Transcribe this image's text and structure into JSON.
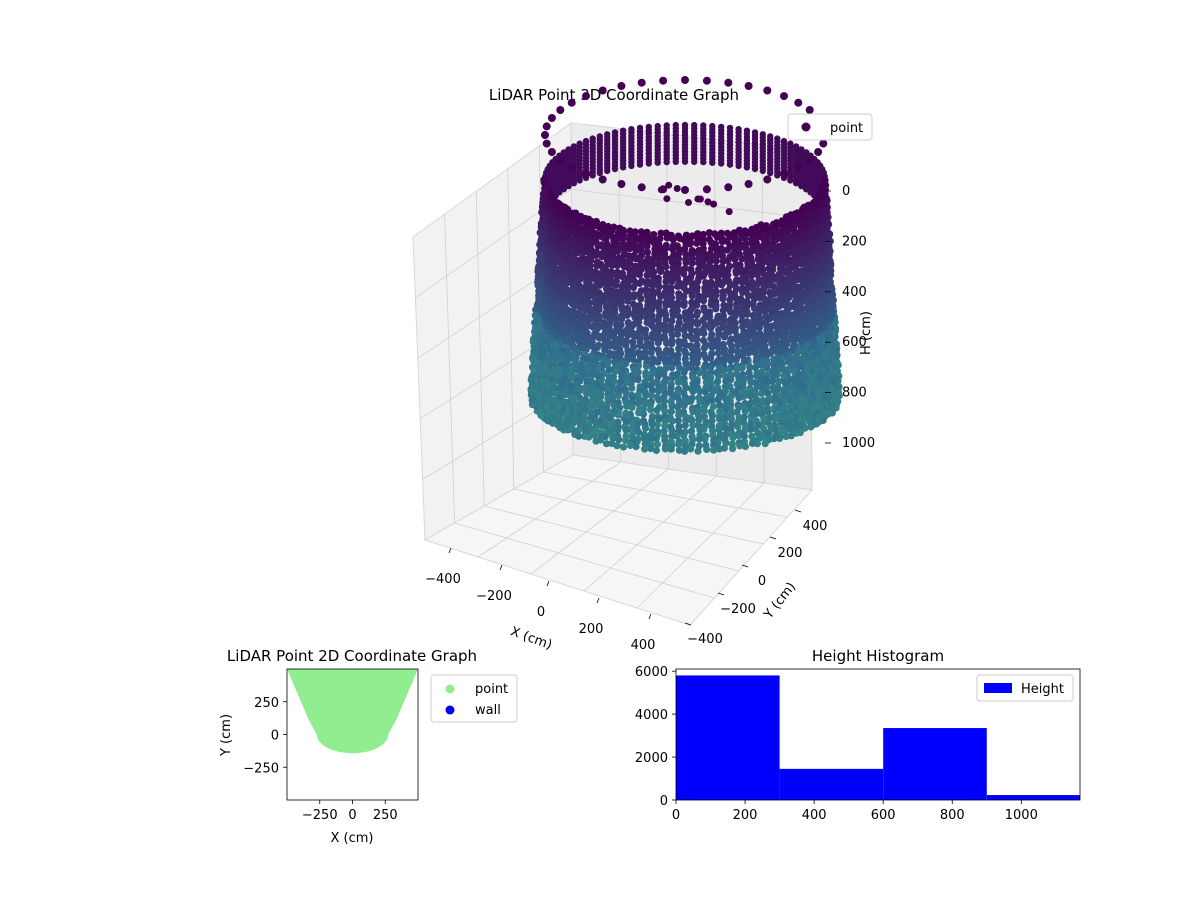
{
  "chart_data": [
    {
      "type": "scatter3d",
      "title": "LiDAR Point 3D Coordinate Graph",
      "xlabel": "X (cm)",
      "ylabel": "Y (cm)",
      "zlabel": "H (cm)",
      "xticks": [
        "−400",
        "−200",
        "0",
        "200",
        "400"
      ],
      "yticks": [
        "−400",
        "−200",
        "0",
        "200",
        "400"
      ],
      "zticks": [
        "0",
        "200",
        "400",
        "600",
        "800",
        "1000"
      ],
      "zlim": [
        0,
        1100
      ],
      "z_inverted": true,
      "grid": true,
      "legend": {
        "position": "top-right",
        "entries": [
          {
            "name": "point",
            "color": "#440154"
          }
        ]
      },
      "shape": {
        "description_free": true,
        "radius": 260,
        "height_range": [
          0,
          1050
        ]
      },
      "colormap": [
        "#440154",
        "#31688e",
        "#35b779"
      ]
    },
    {
      "type": "scatter",
      "title": "LiDAR Point 2D Coordinate Graph",
      "xlabel": "X (cm)",
      "ylabel": "Y (cm)",
      "xticks": [
        "−250",
        "0",
        "250"
      ],
      "yticks": [
        "250",
        "0",
        "−250"
      ],
      "xlim": [
        -500,
        500
      ],
      "ylim": [
        -500,
        500
      ],
      "series": [
        {
          "name": "point",
          "color": "#90ee90",
          "radius": 260
        },
        {
          "name": "wall",
          "color": "#0000ff"
        }
      ],
      "legend": {
        "position": "outside-right",
        "entries": [
          {
            "name": "point",
            "color": "#90ee90"
          },
          {
            "name": "wall",
            "color": "#0000ff"
          }
        ]
      }
    },
    {
      "type": "bar",
      "title": "Height Histogram",
      "xlabel": "",
      "ylabel": "",
      "bin_edges": [
        0,
        300,
        600,
        900,
        1200
      ],
      "values": [
        5800,
        1450,
        3350,
        230
      ],
      "xlim": [
        0,
        1170
      ],
      "ylim": [
        0,
        6100
      ],
      "xticks": [
        "0",
        "200",
        "400",
        "600",
        "800",
        "1000"
      ],
      "yticks": [
        "0",
        "2000",
        "4000",
        "6000"
      ],
      "color": "#0000ff",
      "legend": {
        "position": "top-right",
        "entries": [
          {
            "name": "Height",
            "color": "#0000ff"
          }
        ]
      }
    }
  ]
}
